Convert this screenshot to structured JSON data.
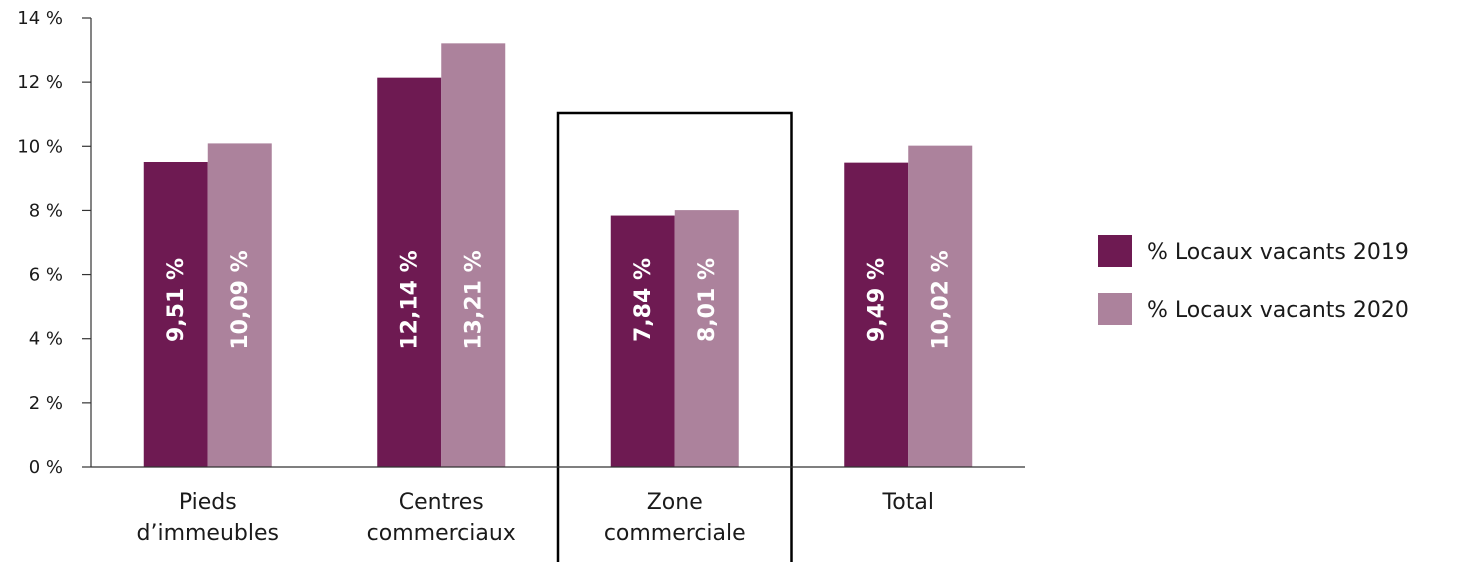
{
  "chart_data": {
    "type": "bar",
    "categories": [
      [
        "Pieds",
        "d’immeubles"
      ],
      [
        "Centres",
        "commerciaux"
      ],
      [
        "Zone",
        "commerciale"
      ],
      [
        "Total"
      ]
    ],
    "series": [
      {
        "name": "% Locaux vacants 2019",
        "color": "#6e1a52",
        "values": [
          9.51,
          12.14,
          7.84,
          9.49
        ],
        "data_labels": [
          "9,51 %",
          "12,14 %",
          "7,84 %",
          "9,49 %"
        ]
      },
      {
        "name": "% Locaux vacants 2020",
        "color": "#ac829c",
        "values": [
          10.09,
          13.21,
          8.01,
          10.02
        ],
        "data_labels": [
          "10,09 %",
          "13,21 %",
          "8,01 %",
          "10,02 %"
        ]
      }
    ],
    "yticks": [
      0,
      2,
      4,
      6,
      8,
      10,
      12,
      14
    ],
    "ytick_labels": [
      "0 %",
      "2 %",
      "4 %",
      "6 %",
      "8 %",
      "10 %",
      "12 %",
      "14 %"
    ],
    "ylim": [
      0,
      14
    ],
    "grid": false,
    "highlighted_category": "Zone commerciale",
    "legend_position": "right"
  }
}
